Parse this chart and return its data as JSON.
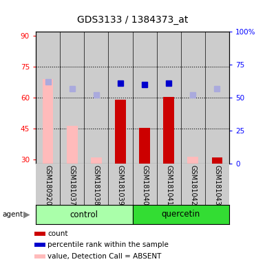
{
  "title": "GDS3133 / 1384373_at",
  "samples": [
    "GSM180920",
    "GSM181037",
    "GSM181038",
    "GSM181039",
    "GSM181040",
    "GSM181041",
    "GSM181042",
    "GSM181043"
  ],
  "groups": [
    "control",
    "control",
    "control",
    "control",
    "quercetin",
    "quercetin",
    "quercetin",
    "quercetin"
  ],
  "bar_values": [
    null,
    null,
    null,
    59,
    45.5,
    60.5,
    null,
    31
  ],
  "bar_absent_values": [
    69,
    46.5,
    31,
    null,
    null,
    null,
    31.5,
    null
  ],
  "rank_pct_values": [
    null,
    null,
    null,
    61,
    60,
    61,
    null,
    null
  ],
  "rank_pct_absent": [
    62,
    57,
    52,
    null,
    null,
    null,
    52,
    57
  ],
  "ylim_left": [
    28,
    92
  ],
  "ylim_right": [
    0,
    100
  ],
  "yticks_left": [
    30,
    45,
    60,
    75,
    90
  ],
  "yticks_right": [
    0,
    25,
    50,
    75,
    100
  ],
  "ytick_labels_left": [
    "30",
    "45",
    "60",
    "75",
    "90"
  ],
  "ytick_labels_right": [
    "0",
    "25",
    "50",
    "75",
    "100%"
  ],
  "hlines": [
    75,
    60,
    45
  ],
  "bar_color": "#cc0000",
  "bar_absent_color": "#ffbbbb",
  "rank_color": "#0000cc",
  "rank_absent_color": "#aaaadd",
  "control_bg": "#aaffaa",
  "quercetin_bg": "#33dd33",
  "sample_bg": "#cccccc",
  "plot_bg": "#ffffff",
  "legend_items": [
    {
      "color": "#cc0000",
      "label": "count"
    },
    {
      "color": "#0000cc",
      "label": "percentile rank within the sample"
    },
    {
      "color": "#ffbbbb",
      "label": "value, Detection Call = ABSENT"
    },
    {
      "color": "#aaaadd",
      "label": "rank, Detection Call = ABSENT"
    }
  ]
}
